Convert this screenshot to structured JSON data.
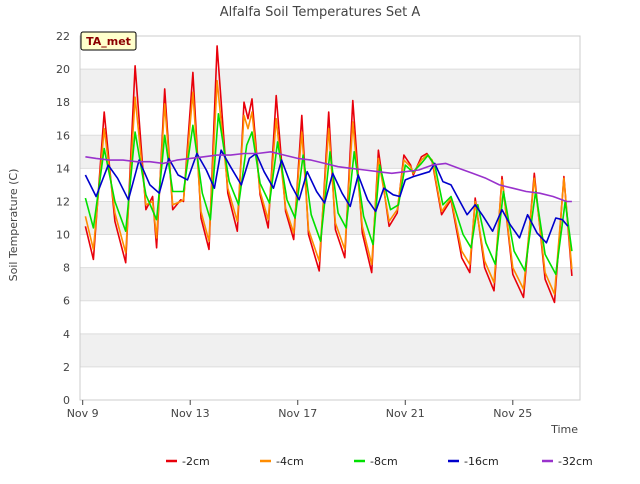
{
  "chart_data": {
    "type": "line",
    "title": "Alfalfa Soil Temperatures Set A",
    "xlabel": "Time",
    "ylabel": "Soil Temperature (C)",
    "badge": "TA_met",
    "ylim": [
      0,
      22
    ],
    "yticks": [
      "0",
      "2",
      "4",
      "6",
      "8",
      "10",
      "12",
      "14",
      "16",
      "18",
      "20",
      "22"
    ],
    "xlim": [
      8.9,
      27.5
    ],
    "xticks": [
      {
        "label": "Nov 9",
        "x": 9
      },
      {
        "label": "Nov 13",
        "x": 13
      },
      {
        "label": "Nov 17",
        "x": 17
      },
      {
        "label": "Nov 21",
        "x": 21
      },
      {
        "label": "Nov 25",
        "x": 25
      }
    ],
    "grid": true,
    "legend_position": "bottom",
    "x_units": "day of November",
    "series": [
      {
        "name": "-2cm",
        "color": "#e8000b",
        "points": [
          [
            9.1,
            10.5
          ],
          [
            9.4,
            8.5
          ],
          [
            9.8,
            17.4
          ],
          [
            10.2,
            10.8
          ],
          [
            10.6,
            8.3
          ],
          [
            10.95,
            20.2
          ],
          [
            11.35,
            11.5
          ],
          [
            11.6,
            12.3
          ],
          [
            11.75,
            9.2
          ],
          [
            12.05,
            18.8
          ],
          [
            12.35,
            11.5
          ],
          [
            12.65,
            12.1
          ],
          [
            12.75,
            12.0
          ],
          [
            13.1,
            19.8
          ],
          [
            13.4,
            11.0
          ],
          [
            13.7,
            9.1
          ],
          [
            14.0,
            21.4
          ],
          [
            14.4,
            12.5
          ],
          [
            14.75,
            10.2
          ],
          [
            15.0,
            18.0
          ],
          [
            15.15,
            17.0
          ],
          [
            15.3,
            18.2
          ],
          [
            15.6,
            12.4
          ],
          [
            15.9,
            10.4
          ],
          [
            16.2,
            18.4
          ],
          [
            16.55,
            11.4
          ],
          [
            16.85,
            9.7
          ],
          [
            17.15,
            17.2
          ],
          [
            17.4,
            10.0
          ],
          [
            17.8,
            7.8
          ],
          [
            18.15,
            17.4
          ],
          [
            18.4,
            10.3
          ],
          [
            18.75,
            8.6
          ],
          [
            19.05,
            18.1
          ],
          [
            19.4,
            10.1
          ],
          [
            19.75,
            7.7
          ],
          [
            20.0,
            15.1
          ],
          [
            20.4,
            10.5
          ],
          [
            20.7,
            11.3
          ],
          [
            20.95,
            14.8
          ],
          [
            21.2,
            14.2
          ],
          [
            21.3,
            13.6
          ],
          [
            21.6,
            14.7
          ],
          [
            21.8,
            14.9
          ],
          [
            22.0,
            14.4
          ],
          [
            22.35,
            11.2
          ],
          [
            22.7,
            12.1
          ],
          [
            23.1,
            8.6
          ],
          [
            23.4,
            7.7
          ],
          [
            23.6,
            12.2
          ],
          [
            23.95,
            8.0
          ],
          [
            24.3,
            6.6
          ],
          [
            24.6,
            13.5
          ],
          [
            25.0,
            7.6
          ],
          [
            25.4,
            6.2
          ],
          [
            25.8,
            13.7
          ],
          [
            26.2,
            7.3
          ],
          [
            26.55,
            5.9
          ],
          [
            26.9,
            13.5
          ],
          [
            27.2,
            7.5
          ]
        ]
      },
      {
        "name": "-4cm",
        "color": "#ff8c00",
        "points": [
          [
            9.1,
            11.1
          ],
          [
            9.4,
            9.1
          ],
          [
            9.8,
            16.4
          ],
          [
            10.2,
            11.3
          ],
          [
            10.6,
            8.9
          ],
          [
            10.95,
            18.3
          ],
          [
            11.35,
            11.8
          ],
          [
            11.6,
            12.0
          ],
          [
            11.75,
            9.8
          ],
          [
            12.05,
            17.9
          ],
          [
            12.35,
            11.8
          ],
          [
            12.65,
            12.0
          ],
          [
            12.75,
            12.1
          ],
          [
            13.1,
            18.6
          ],
          [
            13.4,
            11.4
          ],
          [
            13.7,
            9.6
          ],
          [
            14.0,
            19.3
          ],
          [
            14.4,
            12.8
          ],
          [
            14.75,
            10.8
          ],
          [
            15.0,
            17.2
          ],
          [
            15.15,
            16.4
          ],
          [
            15.3,
            17.4
          ],
          [
            15.6,
            12.6
          ],
          [
            15.9,
            10.9
          ],
          [
            16.2,
            17.0
          ],
          [
            16.55,
            11.6
          ],
          [
            16.85,
            10.1
          ],
          [
            17.15,
            16.2
          ],
          [
            17.4,
            10.3
          ],
          [
            17.8,
            8.4
          ],
          [
            18.15,
            16.4
          ],
          [
            18.4,
            10.7
          ],
          [
            18.75,
            9.1
          ],
          [
            19.05,
            16.8
          ],
          [
            19.4,
            10.5
          ],
          [
            19.75,
            8.2
          ],
          [
            20.0,
            14.6
          ],
          [
            20.4,
            10.8
          ],
          [
            20.7,
            11.5
          ],
          [
            20.95,
            14.5
          ],
          [
            21.2,
            14.1
          ],
          [
            21.3,
            13.7
          ],
          [
            21.6,
            14.5
          ],
          [
            21.8,
            14.8
          ],
          [
            22.0,
            14.5
          ],
          [
            22.35,
            11.4
          ],
          [
            22.7,
            12.2
          ],
          [
            23.1,
            9.0
          ],
          [
            23.4,
            8.2
          ],
          [
            23.6,
            12.0
          ],
          [
            23.95,
            8.4
          ],
          [
            24.3,
            7.1
          ],
          [
            24.6,
            13.3
          ],
          [
            25.0,
            8.0
          ],
          [
            25.4,
            6.7
          ],
          [
            25.8,
            13.4
          ],
          [
            26.2,
            7.7
          ],
          [
            26.55,
            6.4
          ],
          [
            26.9,
            13.4
          ],
          [
            27.2,
            7.9
          ]
        ]
      },
      {
        "name": "-8cm",
        "color": "#00e000",
        "points": [
          [
            9.1,
            12.2
          ],
          [
            9.4,
            10.4
          ],
          [
            9.8,
            15.2
          ],
          [
            10.2,
            12.0
          ],
          [
            10.6,
            10.2
          ],
          [
            10.95,
            16.2
          ],
          [
            11.35,
            12.4
          ],
          [
            11.75,
            10.9
          ],
          [
            12.05,
            16.0
          ],
          [
            12.35,
            12.6
          ],
          [
            12.75,
            12.6
          ],
          [
            13.1,
            16.6
          ],
          [
            13.45,
            12.5
          ],
          [
            13.75,
            10.9
          ],
          [
            14.05,
            17.3
          ],
          [
            14.45,
            13.2
          ],
          [
            14.8,
            11.8
          ],
          [
            15.1,
            15.4
          ],
          [
            15.3,
            16.2
          ],
          [
            15.6,
            13.1
          ],
          [
            15.95,
            11.9
          ],
          [
            16.25,
            15.6
          ],
          [
            16.6,
            12.1
          ],
          [
            16.9,
            11.0
          ],
          [
            17.2,
            14.8
          ],
          [
            17.5,
            11.2
          ],
          [
            17.85,
            9.6
          ],
          [
            18.2,
            15.0
          ],
          [
            18.5,
            11.3
          ],
          [
            18.8,
            10.4
          ],
          [
            19.1,
            15.0
          ],
          [
            19.45,
            11.1
          ],
          [
            19.8,
            9.4
          ],
          [
            20.05,
            14.2
          ],
          [
            20.45,
            11.5
          ],
          [
            20.75,
            11.8
          ],
          [
            21.0,
            14.2
          ],
          [
            21.2,
            13.9
          ],
          [
            21.3,
            13.8
          ],
          [
            21.6,
            14.3
          ],
          [
            21.85,
            14.8
          ],
          [
            22.1,
            14.2
          ],
          [
            22.4,
            11.8
          ],
          [
            22.7,
            12.3
          ],
          [
            23.15,
            10.0
          ],
          [
            23.45,
            9.2
          ],
          [
            23.7,
            11.8
          ],
          [
            24.0,
            9.5
          ],
          [
            24.35,
            8.2
          ],
          [
            24.65,
            12.6
          ],
          [
            25.05,
            9.0
          ],
          [
            25.45,
            7.8
          ],
          [
            25.85,
            12.6
          ],
          [
            26.2,
            8.8
          ],
          [
            26.6,
            7.6
          ],
          [
            26.95,
            12.0
          ],
          [
            27.2,
            9.0
          ]
        ]
      },
      {
        "name": "-16cm",
        "color": "#0000cc",
        "points": [
          [
            9.1,
            13.6
          ],
          [
            9.5,
            12.3
          ],
          [
            9.95,
            14.2
          ],
          [
            10.3,
            13.4
          ],
          [
            10.7,
            12.1
          ],
          [
            11.1,
            14.5
          ],
          [
            11.5,
            13.0
          ],
          [
            11.85,
            12.5
          ],
          [
            12.2,
            14.6
          ],
          [
            12.55,
            13.6
          ],
          [
            12.9,
            13.3
          ],
          [
            13.25,
            14.9
          ],
          [
            13.6,
            13.9
          ],
          [
            13.9,
            12.8
          ],
          [
            14.15,
            15.1
          ],
          [
            14.5,
            14.1
          ],
          [
            14.9,
            13.0
          ],
          [
            15.2,
            14.6
          ],
          [
            15.45,
            14.9
          ],
          [
            15.75,
            13.8
          ],
          [
            16.1,
            12.8
          ],
          [
            16.4,
            14.5
          ],
          [
            16.75,
            13.0
          ],
          [
            17.05,
            12.1
          ],
          [
            17.35,
            13.8
          ],
          [
            17.7,
            12.6
          ],
          [
            18.0,
            11.9
          ],
          [
            18.3,
            13.7
          ],
          [
            18.65,
            12.5
          ],
          [
            18.95,
            11.7
          ],
          [
            19.25,
            13.6
          ],
          [
            19.6,
            12.1
          ],
          [
            19.9,
            11.4
          ],
          [
            20.2,
            12.8
          ],
          [
            20.55,
            12.4
          ],
          [
            20.8,
            12.3
          ],
          [
            21.0,
            13.3
          ],
          [
            21.3,
            13.5
          ],
          [
            21.7,
            13.7
          ],
          [
            21.9,
            13.8
          ],
          [
            22.1,
            14.3
          ],
          [
            22.4,
            13.2
          ],
          [
            22.7,
            13.0
          ],
          [
            23.0,
            12.1
          ],
          [
            23.3,
            11.2
          ],
          [
            23.6,
            11.8
          ],
          [
            23.9,
            11.1
          ],
          [
            24.25,
            10.2
          ],
          [
            24.6,
            11.5
          ],
          [
            24.9,
            10.6
          ],
          [
            25.25,
            9.8
          ],
          [
            25.55,
            11.2
          ],
          [
            25.9,
            10.1
          ],
          [
            26.25,
            9.5
          ],
          [
            26.6,
            11.0
          ],
          [
            26.85,
            10.9
          ],
          [
            27.05,
            10.5
          ]
        ]
      },
      {
        "name": "-32cm",
        "color": "#9932cc",
        "points": [
          [
            9.1,
            14.7
          ],
          [
            9.5,
            14.6
          ],
          [
            10.0,
            14.5
          ],
          [
            10.5,
            14.5
          ],
          [
            11.0,
            14.4
          ],
          [
            11.5,
            14.4
          ],
          [
            12.0,
            14.3
          ],
          [
            12.5,
            14.5
          ],
          [
            13.0,
            14.6
          ],
          [
            13.5,
            14.7
          ],
          [
            14.0,
            14.8
          ],
          [
            14.5,
            14.8
          ],
          [
            15.0,
            14.9
          ],
          [
            15.5,
            14.9
          ],
          [
            16.0,
            15.0
          ],
          [
            16.5,
            14.8
          ],
          [
            17.0,
            14.6
          ],
          [
            17.5,
            14.5
          ],
          [
            18.0,
            14.3
          ],
          [
            18.5,
            14.1
          ],
          [
            19.0,
            14.0
          ],
          [
            19.5,
            13.9
          ],
          [
            20.0,
            13.8
          ],
          [
            20.5,
            13.7
          ],
          [
            21.0,
            13.8
          ],
          [
            21.5,
            13.9
          ],
          [
            22.0,
            14.2
          ],
          [
            22.5,
            14.3
          ],
          [
            23.0,
            14.0
          ],
          [
            23.5,
            13.7
          ],
          [
            24.0,
            13.4
          ],
          [
            24.5,
            13.0
          ],
          [
            25.0,
            12.8
          ],
          [
            25.5,
            12.6
          ],
          [
            26.0,
            12.5
          ],
          [
            26.5,
            12.3
          ],
          [
            27.0,
            12.0
          ],
          [
            27.2,
            12.0
          ]
        ]
      }
    ]
  }
}
